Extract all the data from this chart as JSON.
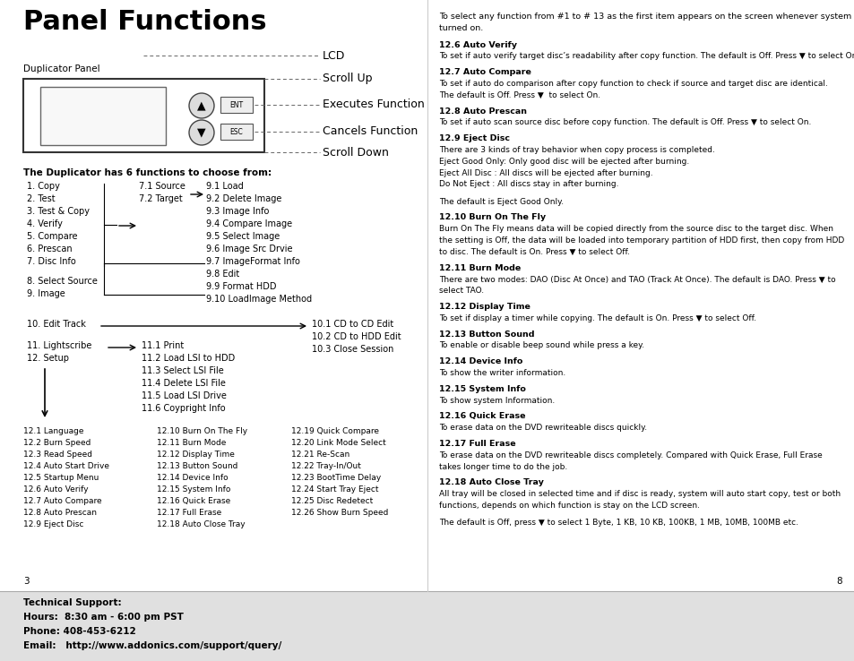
{
  "bg_color": "#ffffff",
  "title": "Panel Functions",
  "page_width": 9.54,
  "page_height": 7.38,
  "footer_text_lines": [
    {
      "text": "Technical Support:",
      "bold": true
    },
    {
      "text": "Hours:  8:30 am - 6:00 pm PST",
      "bold": true
    },
    {
      "text": "Phone: 408-453-6212",
      "bold": true
    },
    {
      "text": "Email:   http://www.addonics.com/support/query/",
      "bold": true
    }
  ],
  "page_num_left": "3",
  "page_num_right": "8",
  "right_content_intro": "To select any function from #1 to # 13 as the first item appears on the screen whenever system is\nturned on.",
  "right_sections": [
    {
      "title": "12.6 Auto Verify",
      "body": "To set if auto verify target disc’s readability after copy function. The default is Off. Press ▼ to select On."
    },
    {
      "title": "12.7 Auto Compare",
      "body": "To set if auto do comparison after copy function to check if source and target disc are identical.\nThe default is Off. Press ▼  to select On."
    },
    {
      "title": "12.8 Auto Prescan",
      "body": "To set if auto scan source disc before copy function. The default is Off. Press ▼ to select On."
    },
    {
      "title": "12.9 Eject Disc",
      "body": "There are 3 kinds of tray behavior when copy process is completed.\nEject Good Only: Only good disc will be ejected after burning.\nEject All Disc : All discs will be ejected after burning.\nDo Not Eject : All discs stay in after burning.\n\nThe default is Eject Good Only."
    },
    {
      "title": "12.10 Burn On The Fly",
      "body": "Burn On The Fly means data will be copied directly from the source disc to the target disc. When\nthe setting is Off, the data will be loaded into temporary partition of HDD first, then copy from HDD\nto disc. The default is On. Press ▼ to select Off."
    },
    {
      "title": "12.11 Burn Mode",
      "body": "There are two modes: DAO (Disc At Once) and TAO (Track At Once). The default is DAO. Press ▼ to\nselect TAO."
    },
    {
      "title": "12.12 Display Time",
      "body": "To set if display a timer while copying. The default is On. Press ▼ to select Off."
    },
    {
      "title": "12.13 Button Sound",
      "body": "To enable or disable beep sound while press a key."
    },
    {
      "title": "12.14 Device Info",
      "body": "To show the writer information."
    },
    {
      "title": "12.15 System Info",
      "body": "To show system Information."
    },
    {
      "title": "12.16 Quick Erase",
      "body": "To erase data on the DVD rewriteable discs quickly."
    },
    {
      "title": "12.17 Full Erase",
      "body": "To erase data on the DVD rewriteable discs completely. Compared with Quick Erase, Full Erase\ntakes longer time to do the job."
    },
    {
      "title": "12.18 Auto Close Tray",
      "body": "All tray will be closed in selected time and if disc is ready, system will auto start copy, test or both\nfunctions, depends on which function is stay on the LCD screen.\n\nThe default is Off, press ▼ to select 1 Byte, 1 KB, 10 KB, 100KB, 1 MB, 10MB, 100MB etc."
    }
  ]
}
